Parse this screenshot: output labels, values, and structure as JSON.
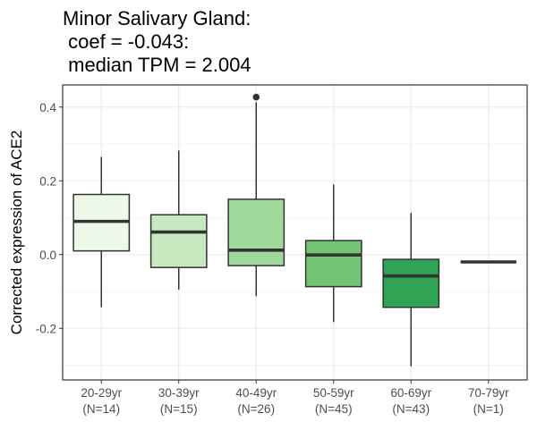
{
  "chart_data": {
    "type": "box",
    "title": [
      "Minor Salivary Gland:",
      " coef = -0.043:",
      " median TPM = 2.004"
    ],
    "xlabel": "",
    "ylabel": "Corrected expression of ACE2",
    "ylim": [
      -0.34,
      0.46
    ],
    "yticks": [
      -0.2,
      0.0,
      0.2,
      0.4
    ],
    "ytick_labels": [
      "-0.2",
      "0.0",
      "0.2",
      "0.4"
    ],
    "grid": true,
    "categories": [
      "20-29yr\n(N=14)",
      "30-39yr\n(N=15)",
      "40-49yr\n(N=26)",
      "50-59yr\n(N=45)",
      "60-69yr\n(N=43)",
      "70-79yr\n(N=1)"
    ],
    "boxes": [
      {
        "label": "20-29yr",
        "n": "(N=14)",
        "whisker_low": -0.143,
        "q1": 0.01,
        "median": 0.09,
        "q3": 0.163,
        "whisker_high": 0.265,
        "outliers": [],
        "color": "#edf8e9"
      },
      {
        "label": "30-39yr",
        "n": "(N=15)",
        "whisker_low": -0.095,
        "q1": -0.035,
        "median": 0.061,
        "q3": 0.108,
        "whisker_high": 0.282,
        "outliers": [],
        "color": "#c7e9c0"
      },
      {
        "label": "40-49yr",
        "n": "(N=26)",
        "whisker_low": -0.113,
        "q1": -0.03,
        "median": 0.012,
        "q3": 0.15,
        "whisker_high": 0.413,
        "outliers": [
          0.427
        ],
        "color": "#a1d99b"
      },
      {
        "label": "50-59yr",
        "n": "(N=45)",
        "whisker_low": -0.183,
        "q1": -0.087,
        "median": -0.001,
        "q3": 0.038,
        "whisker_high": 0.19,
        "outliers": [],
        "color": "#74c476"
      },
      {
        "label": "60-69yr",
        "n": "(N=43)",
        "whisker_low": -0.303,
        "q1": -0.143,
        "median": -0.058,
        "q3": -0.013,
        "whisker_high": 0.113,
        "outliers": [],
        "color": "#31a354"
      },
      {
        "label": "70-79yr",
        "n": "(N=1)",
        "whisker_low": -0.02,
        "q1": -0.02,
        "median": -0.02,
        "q3": -0.02,
        "whisker_high": -0.02,
        "outliers": [],
        "color": "#006d2c"
      }
    ]
  }
}
